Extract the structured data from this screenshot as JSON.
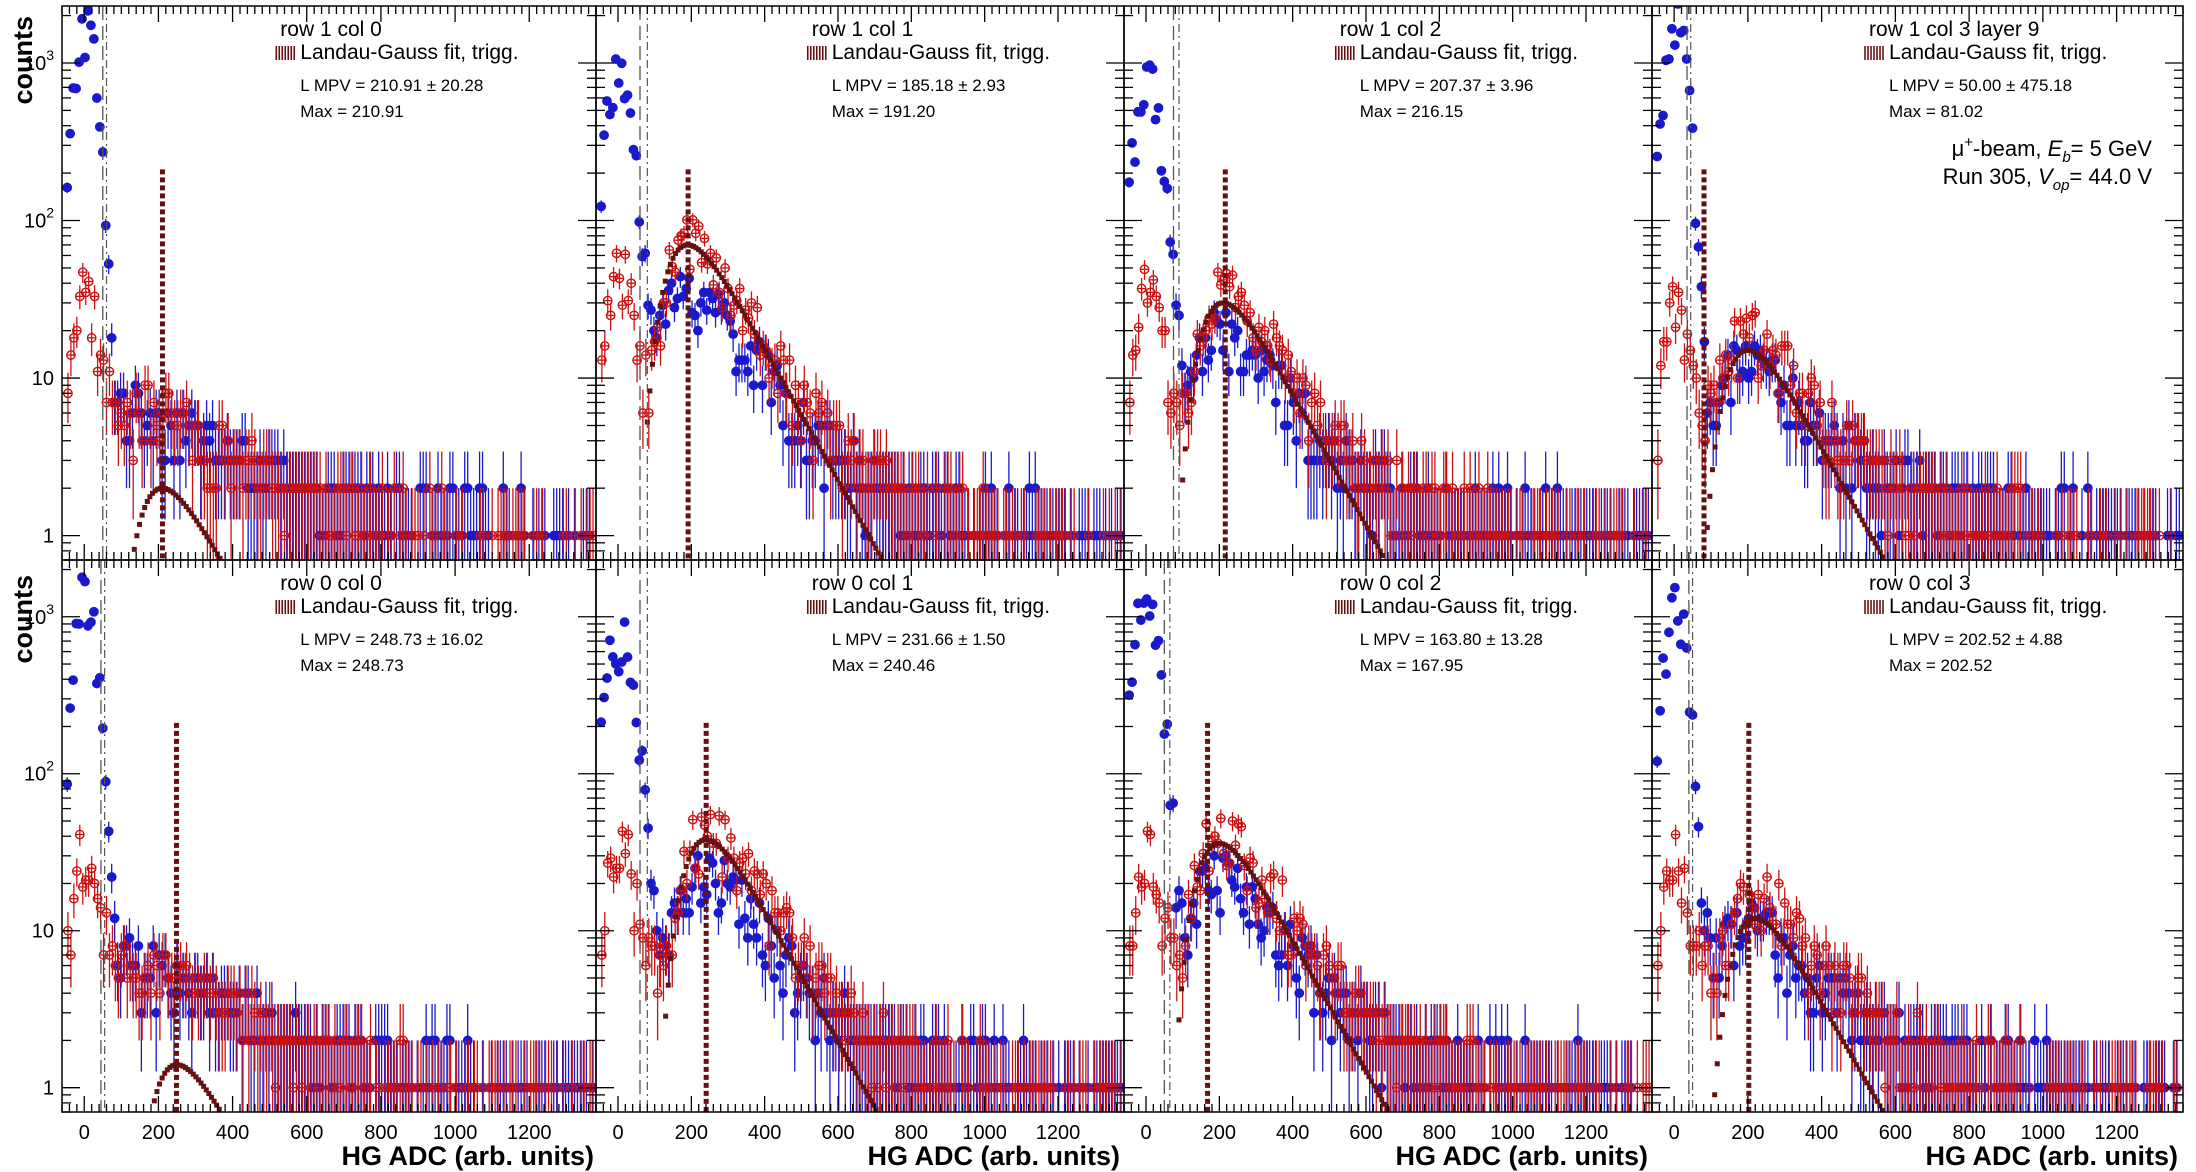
{
  "figure": {
    "ylabel": "counts",
    "xlabel": "HG ADC (arb. units)",
    "legend_label": "Landau-Gauss fit, trigg.",
    "x_ticks": [
      0,
      200,
      400,
      600,
      800,
      1000,
      1200
    ],
    "y_ticks": [
      {
        "value": 1,
        "label": "1"
      },
      {
        "value": 10,
        "label": "10"
      },
      {
        "value": 100,
        "label": "10",
        "exp": "2"
      },
      {
        "value": 1000,
        "label": "10",
        "exp": "3"
      }
    ],
    "beam_info": {
      "line1_a": "μ",
      "line1_sup": "+",
      "line1_b": "-beam,  ",
      "line1_E": "E",
      "line1_Esub": "b",
      "line1_c": "= 5 GeV",
      "line2_a": "Run 305,  ",
      "line2_V": "V",
      "line2_Vsub": "op",
      "line2_c": "= 44.0 V"
    },
    "colors": {
      "all": "#1a1acc",
      "triggered": "#cc1111",
      "fit": "#661111",
      "marker_line": "#555555"
    }
  },
  "chart_data": [
    {
      "type": "scatter",
      "title": "row 1 col 0",
      "mpv_text": "L MPV = 210.91 ± 20.28",
      "max_text": "Max = 210.91",
      "mpv": 210.91,
      "xlim": [
        -60,
        1380
      ],
      "ylim": [
        0.7,
        2300
      ],
      "yscale": "log",
      "ped_all": {
        "mu": 0,
        "sigma": 22,
        "amp": 1800
      },
      "ped_trig": {
        "mu": -5,
        "amp": 38
      },
      "signal": {
        "mpv": 210,
        "amp": 2.2
      },
      "fit_peak": 2.0,
      "bg": 1.5,
      "cut1": 50,
      "cut2": 60
    },
    {
      "type": "scatter",
      "title": "row 1 col 1",
      "mpv_text": "L MPV = 185.18 ± 2.93",
      "max_text": "Max = 191.20",
      "mpv": 191.2,
      "xlim": [
        -60,
        1380
      ],
      "ylim": [
        0.7,
        2300
      ],
      "yscale": "log",
      "ped_all": {
        "mu": 0,
        "sigma": 30,
        "amp": 780
      },
      "ped_trig": {
        "mu": 0,
        "amp": 50
      },
      "signal": {
        "mpv": 190,
        "amp": 70
      },
      "fit_peak": 70,
      "bg": 1.5,
      "cut1": 60,
      "cut2": 80
    },
    {
      "type": "scatter",
      "title": "row 1 col 2",
      "mpv_text": "L MPV = 207.37 ± 3.96",
      "max_text": "Max = 216.15",
      "mpv": 216.15,
      "xlim": [
        -60,
        1380
      ],
      "ylim": [
        0.7,
        2300
      ],
      "yscale": "log",
      "ped_all": {
        "mu": 0,
        "sigma": 30,
        "amp": 720
      },
      "ped_trig": {
        "mu": 0,
        "amp": 38
      },
      "signal": {
        "mpv": 210,
        "amp": 30
      },
      "fit_peak": 30,
      "bg": 1.5,
      "cut1": 75,
      "cut2": 90
    },
    {
      "type": "scatter",
      "title": "row 1 col 3 layer 9",
      "mpv_text": "L MPV = 50.00 ± 475.18",
      "max_text": "Max = 81.02",
      "mpv": 81.02,
      "xlim": [
        -60,
        1380
      ],
      "ylim": [
        0.7,
        2300
      ],
      "yscale": "log",
      "ped_all": {
        "mu": 0,
        "sigma": 24,
        "amp": 1700
      },
      "ped_trig": {
        "mu": 0,
        "amp": 28
      },
      "signal": {
        "mpv": 200,
        "amp": 15
      },
      "fit_peak": 15,
      "bg": 1.5,
      "cut1": 35,
      "cut2": 45
    },
    {
      "type": "scatter",
      "title": "row 0 col 0",
      "mpv_text": "L MPV = 248.73 ± 16.02",
      "max_text": "Max = 248.73",
      "mpv": 248.73,
      "xlim": [
        -60,
        1380
      ],
      "ylim": [
        0.7,
        2300
      ],
      "yscale": "log",
      "ped_all": {
        "mu": 0,
        "sigma": 22,
        "amp": 1500
      },
      "ped_trig": {
        "mu": -5,
        "amp": 32
      },
      "signal": {
        "mpv": 250,
        "amp": 1.5
      },
      "fit_peak": 1.4,
      "bg": 1.5,
      "cut1": 45,
      "cut2": 55
    },
    {
      "type": "scatter",
      "title": "row 0 col 1",
      "mpv_text": "L MPV = 231.66 ± 1.50",
      "max_text": "Max = 240.46",
      "mpv": 240.46,
      "xlim": [
        -60,
        1380
      ],
      "ylim": [
        0.7,
        2300
      ],
      "yscale": "log",
      "ped_all": {
        "mu": 0,
        "sigma": 30,
        "amp": 780
      },
      "ped_trig": {
        "mu": 0,
        "amp": 42
      },
      "signal": {
        "mpv": 240,
        "amp": 40
      },
      "fit_peak": 38,
      "bg": 1.5,
      "cut1": 60,
      "cut2": 80
    },
    {
      "type": "scatter",
      "title": "row 0 col 2",
      "mpv_text": "L MPV = 163.80 ± 13.28",
      "max_text": "Max = 167.95",
      "mpv": 167.95,
      "xlim": [
        -60,
        1380
      ],
      "ylim": [
        0.7,
        2300
      ],
      "yscale": "log",
      "ped_all": {
        "mu": 0,
        "sigma": 26,
        "amp": 1400
      },
      "ped_trig": {
        "mu": 0,
        "amp": 30
      },
      "signal": {
        "mpv": 200,
        "amp": 38
      },
      "fit_peak": 36,
      "bg": 1.5,
      "cut1": 50,
      "cut2": 65
    },
    {
      "type": "scatter",
      "title": "row 0 col 3",
      "mpv_text": "L MPV = 202.52 ± 4.88",
      "max_text": "Max = 202.52",
      "mpv": 202.52,
      "xlim": [
        -60,
        1380
      ],
      "ylim": [
        0.7,
        2300
      ],
      "yscale": "log",
      "ped_all": {
        "mu": 0,
        "sigma": 24,
        "amp": 1200
      },
      "ped_trig": {
        "mu": 0,
        "amp": 30
      },
      "signal": {
        "mpv": 220,
        "amp": 13
      },
      "fit_peak": 12,
      "bg": 1.5,
      "cut1": 40,
      "cut2": 50
    }
  ]
}
